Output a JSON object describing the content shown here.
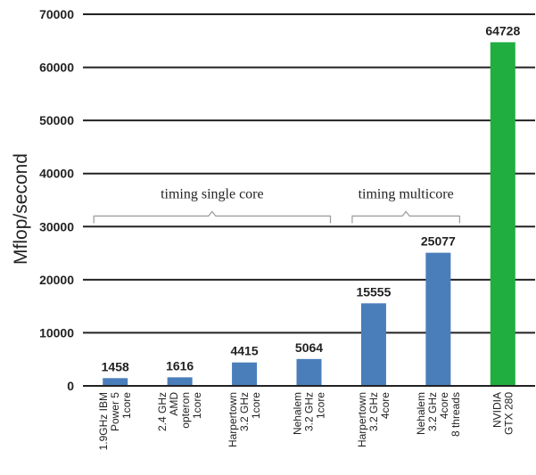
{
  "chart_data": {
    "type": "bar",
    "ylabel": "Mflop/second",
    "xlabel": "",
    "ylim": [
      0,
      70000
    ],
    "yticks": [
      "0",
      "10000",
      "20000",
      "30000",
      "40000",
      "50000",
      "60000",
      "70000"
    ],
    "grid": "horizontal",
    "categories": [
      "1.9GHz IBM Power 5 1core",
      "2.4 GHz AMD opteron 1core",
      "Harpertown 3.2 GHz 1core",
      "Nehalem 3.2 GHz 1core",
      "Harpertown 3.2 GHz 4core",
      "Nehalem 3.2 GHz 4core 8 threads",
      "NVIDIA GTX 280"
    ],
    "category_lines": [
      [
        "1.9GHz IBM",
        "Power 5",
        "1core"
      ],
      [
        "2.4 GHz",
        "AMD",
        "opteron",
        "1core"
      ],
      [
        "Harpertown",
        "3.2 GHz",
        "1core"
      ],
      [
        "Nehalem",
        "3.2 GHz",
        "1core"
      ],
      [
        "Harpertown",
        "3.2 GHz",
        "4core"
      ],
      [
        "Nehalem",
        "3.2 GHz",
        "4core",
        "8 threads"
      ],
      [
        "NVIDIA",
        "GTX 280"
      ]
    ],
    "values": [
      1458,
      1616,
      4415,
      5064,
      15555,
      25077,
      64728
    ],
    "data_labels": [
      "1458",
      "1616",
      "4415",
      "5064",
      "15555",
      "25077",
      "64728"
    ],
    "colors": [
      "#4a7ebb",
      "#4a7ebb",
      "#4a7ebb",
      "#4a7ebb",
      "#4a7ebb",
      "#4a7ebb",
      "#1fae3f"
    ],
    "annotations": [
      {
        "text": "timing single core",
        "from_category": 0,
        "to_category": 3,
        "y": 32000
      },
      {
        "text": "timing multicore",
        "from_category": 4,
        "to_category": 5,
        "y": 32000
      }
    ]
  }
}
